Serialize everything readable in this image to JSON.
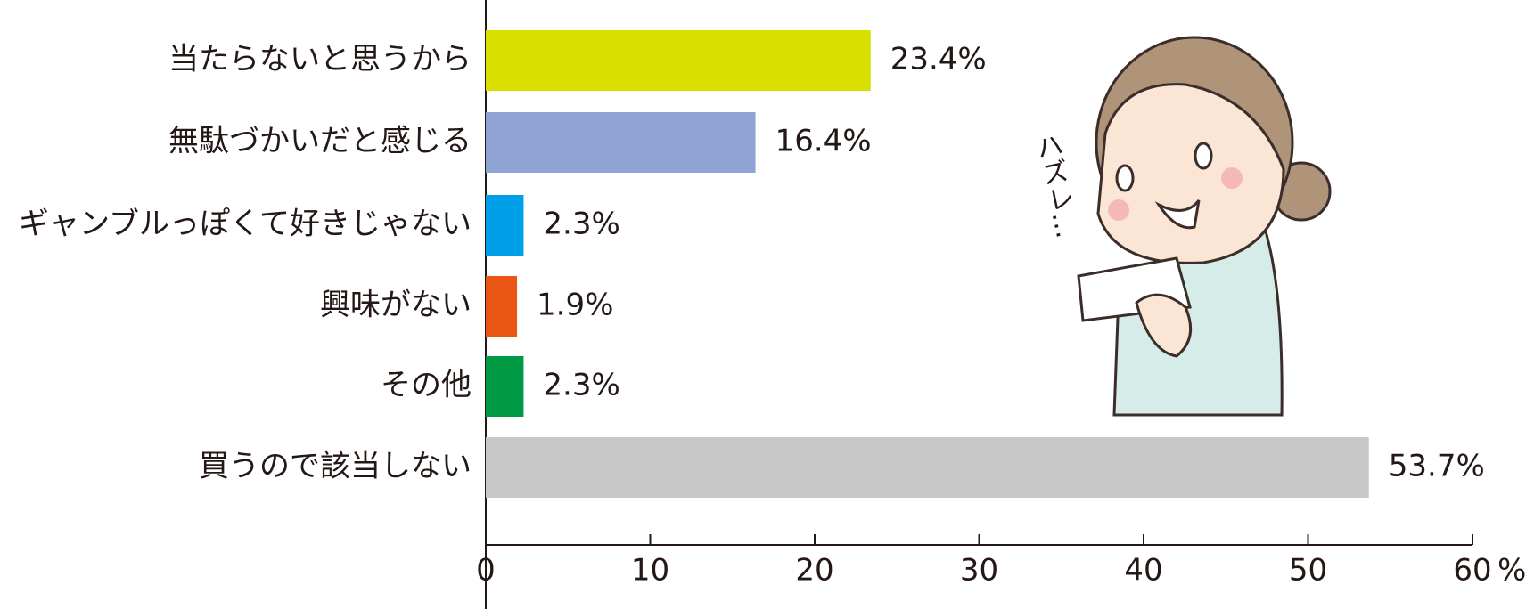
{
  "chart_data": {
    "type": "hbar",
    "categories": [
      "当たらないと思うから",
      "無駄づかいだと感じる",
      "ギャンブルっぽくて好きじゃない",
      "興味がない",
      "その他",
      "買うので該当しない"
    ],
    "values": [
      23.4,
      16.4,
      2.3,
      1.9,
      2.3,
      53.7
    ],
    "value_labels": [
      "23.4%",
      "16.4%",
      "2.3%",
      "1.9%",
      "2.3%",
      "53.7%"
    ],
    "colors": [
      "#d9e000",
      "#8fa3d4",
      "#00a0e9",
      "#e95513",
      "#009944",
      "#c8c8c8"
    ],
    "xlim": [
      0,
      60
    ],
    "xticks": [
      0,
      10,
      20,
      30,
      40,
      50,
      60
    ],
    "xlabel": "%",
    "annotation": "ハズレ…"
  }
}
